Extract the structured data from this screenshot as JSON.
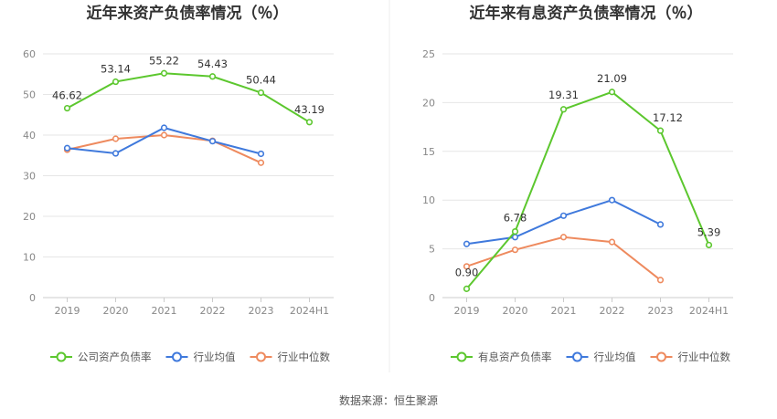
{
  "source_text": "数据来源：恒生聚源",
  "colors": {
    "primary": "#5cc72e",
    "avg": "#3f79dc",
    "median": "#ee8a5e",
    "grid": "#e6e6e6",
    "axis": "#cccccc"
  },
  "chart_data": [
    {
      "type": "line",
      "title": "近年来资产负债率情况（％）",
      "categories": [
        "2019",
        "2020",
        "2021",
        "2022",
        "2023",
        "2024H1"
      ],
      "ylim": [
        0,
        60
      ],
      "yticks": [
        0,
        10,
        20,
        30,
        40,
        50,
        60
      ],
      "grid": true,
      "legend_position": "bottom",
      "series": [
        {
          "name": "公司资产负债率",
          "color_key": "primary",
          "values": [
            46.62,
            53.14,
            55.22,
            54.43,
            50.44,
            43.19
          ],
          "labels": [
            "46.62",
            "53.14",
            "55.22",
            "54.43",
            "50.44",
            "43.19"
          ]
        },
        {
          "name": "行业均值",
          "color_key": "avg",
          "values": [
            36.8,
            35.5,
            41.8,
            38.5,
            35.4,
            null
          ]
        },
        {
          "name": "行业中位数",
          "color_key": "median",
          "values": [
            36.4,
            39.1,
            40.0,
            38.6,
            33.2,
            null
          ]
        }
      ]
    },
    {
      "type": "line",
      "title": "近年来有息资产负债率情况（％）",
      "categories": [
        "2019",
        "2020",
        "2021",
        "2022",
        "2023",
        "2024H1"
      ],
      "ylim": [
        0,
        25
      ],
      "yticks": [
        0,
        5,
        10,
        15,
        20,
        25
      ],
      "grid": true,
      "legend_position": "bottom",
      "series": [
        {
          "name": "有息资产负债率",
          "color_key": "primary",
          "values": [
            0.9,
            6.78,
            19.31,
            21.09,
            17.12,
            5.39
          ],
          "labels": [
            "0.90",
            "6.78",
            "19.31",
            "21.09",
            "17.12",
            "5.39"
          ]
        },
        {
          "name": "行业均值",
          "color_key": "avg",
          "values": [
            5.5,
            6.2,
            8.4,
            10.0,
            7.5,
            null
          ]
        },
        {
          "name": "行业中位数",
          "color_key": "median",
          "values": [
            3.2,
            4.9,
            6.2,
            5.7,
            1.8,
            null
          ]
        }
      ]
    }
  ]
}
